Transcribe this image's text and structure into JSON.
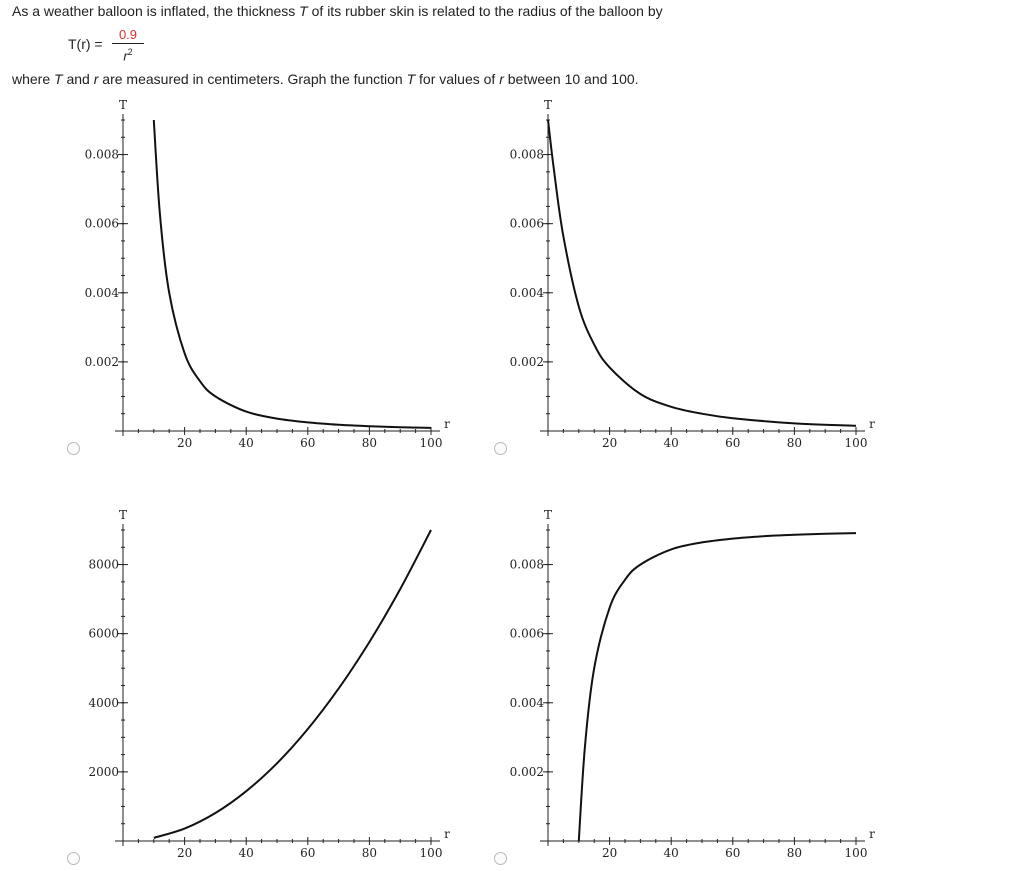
{
  "question": {
    "line1": {
      "p1": "As a weather balloon is inflated, the thickness ",
      "v1": "T",
      "p2": " of its rubber skin is related to the radius of the balloon by"
    },
    "formula": {
      "lhs": "T(r) = ",
      "numerator": "0.9",
      "denominator_base": "r",
      "denominator_exp": "2"
    },
    "line2": {
      "p1": "where ",
      "v1": "T",
      "p2": " and ",
      "v2": "r",
      "p3": " are measured in centimeters. Graph the function ",
      "v3": "T",
      "p4": " for values of ",
      "v4": "r",
      "p5": " between 10 and 100."
    }
  },
  "colors": {
    "numerator": "#d9302b",
    "curve": "#111111",
    "axis": "#222222"
  },
  "options": [
    {
      "id": "a",
      "selected": false,
      "x_label": "r",
      "y_label": "T",
      "chart_data": {
        "type": "line",
        "formula": "0.9/r^2",
        "x_range": [
          10,
          100
        ],
        "xlim": [
          0,
          100
        ],
        "ylim": [
          0,
          0.009
        ],
        "xticks": [
          20,
          40,
          60,
          80,
          100
        ],
        "yticks": [
          0.002,
          0.004,
          0.006,
          0.008
        ],
        "xtick_labels": [
          "20",
          "40",
          "60",
          "80",
          "100"
        ],
        "ytick_labels": [
          "0.002",
          "0.004",
          "0.006",
          "0.008"
        ],
        "x": [
          10,
          12,
          15,
          20,
          25,
          30,
          40,
          50,
          60,
          70,
          80,
          90,
          100
        ],
        "y": [
          0.009,
          0.00625,
          0.004,
          0.00225,
          0.00144,
          0.001,
          0.00056,
          0.00036,
          0.00025,
          0.00018,
          0.00014,
          0.00011,
          9e-05
        ]
      }
    },
    {
      "id": "b",
      "selected": false,
      "x_label": "r",
      "y_label": "T",
      "chart_data": {
        "type": "line",
        "x_range": [
          0,
          100
        ],
        "xlim": [
          0,
          100
        ],
        "ylim": [
          0,
          0.009
        ],
        "xticks": [
          20,
          40,
          60,
          80,
          100
        ],
        "yticks": [
          0.002,
          0.004,
          0.006,
          0.008
        ],
        "xtick_labels": [
          "20",
          "40",
          "60",
          "80",
          "100"
        ],
        "ytick_labels": [
          "0.002",
          "0.004",
          "0.006",
          "0.008"
        ],
        "x": [
          0,
          2,
          5,
          10,
          15,
          20,
          30,
          40,
          50,
          60,
          80,
          100
        ],
        "y": [
          0.009,
          0.0075,
          0.00563,
          0.0036,
          0.0025,
          0.00184,
          0.00107,
          0.0007,
          0.0005,
          0.00037,
          0.00022,
          0.00015
        ]
      }
    },
    {
      "id": "c",
      "selected": false,
      "x_label": "r",
      "y_label": "T",
      "chart_data": {
        "type": "line",
        "formula": "0.9*r^2",
        "x_range": [
          10,
          100
        ],
        "xlim": [
          0,
          100
        ],
        "ylim": [
          0,
          9000
        ],
        "xticks": [
          20,
          40,
          60,
          80,
          100
        ],
        "yticks": [
          2000,
          4000,
          6000,
          8000
        ],
        "xtick_labels": [
          "20",
          "40",
          "60",
          "80",
          "100"
        ],
        "ytick_labels": [
          "2000",
          "4000",
          "6000",
          "8000"
        ],
        "x": [
          10,
          20,
          30,
          40,
          50,
          60,
          70,
          80,
          90,
          100
        ],
        "y": [
          90,
          360,
          810,
          1440,
          2250,
          3240,
          4410,
          5760,
          7290,
          9000
        ]
      }
    },
    {
      "id": "d",
      "selected": false,
      "x_label": "r",
      "y_label": "T",
      "chart_data": {
        "type": "line",
        "formula": "0.009 - 0.9/r^2",
        "x_range": [
          10,
          100
        ],
        "xlim": [
          0,
          100
        ],
        "ylim": [
          0,
          0.009
        ],
        "xticks": [
          20,
          40,
          60,
          80,
          100
        ],
        "yticks": [
          0.002,
          0.004,
          0.006,
          0.008
        ],
        "xtick_labels": [
          "20",
          "40",
          "60",
          "80",
          "100"
        ],
        "ytick_labels": [
          "0.002",
          "0.004",
          "0.006",
          "0.008"
        ],
        "x": [
          10,
          12,
          15,
          20,
          25,
          30,
          40,
          50,
          60,
          70,
          80,
          90,
          100
        ],
        "y": [
          0,
          0.00275,
          0.005,
          0.00675,
          0.00756,
          0.008,
          0.00844,
          0.00864,
          0.00875,
          0.00882,
          0.00886,
          0.00889,
          0.00891
        ]
      }
    }
  ]
}
